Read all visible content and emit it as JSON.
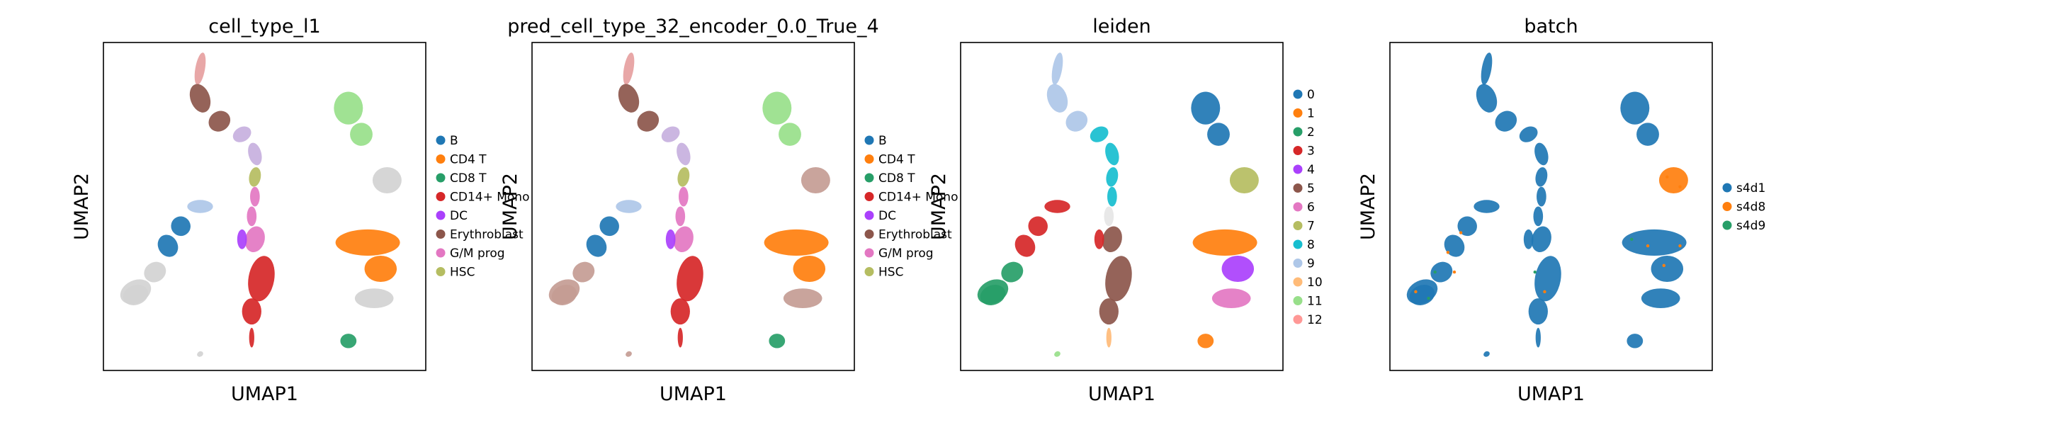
{
  "chart_data": [
    {
      "type": "scatter",
      "title": "cell_type_l1",
      "xlabel": "UMAP1",
      "ylabel": "UMAP2",
      "legend_position": "right",
      "legend": [
        {
          "label": "B",
          "color": "#1f77b4"
        },
        {
          "label": "CD4 T",
          "color": "#ff7f0e"
        },
        {
          "label": "CD8 T",
          "color": "#279e68"
        },
        {
          "label": "CD14+ Mono",
          "color": "#d62728"
        },
        {
          "label": "DC",
          "color": "#aa40fc"
        },
        {
          "label": "Erythroblast",
          "color": "#8c564b"
        },
        {
          "label": "G/M prog",
          "color": "#e377c2"
        },
        {
          "label": "HSC",
          "color": "#b5bd61"
        }
      ]
    },
    {
      "type": "scatter",
      "title": "pred_cell_type_32_encoder_0.0_True_4",
      "xlabel": "UMAP1",
      "ylabel": "UMAP2",
      "legend_position": "right",
      "legend": [
        {
          "label": "B",
          "color": "#1f77b4"
        },
        {
          "label": "CD4 T",
          "color": "#ff7f0e"
        },
        {
          "label": "CD8 T",
          "color": "#279e68"
        },
        {
          "label": "CD14+ Mono",
          "color": "#d62728"
        },
        {
          "label": "DC",
          "color": "#aa40fc"
        },
        {
          "label": "Erythroblast",
          "color": "#8c564b"
        },
        {
          "label": "G/M prog",
          "color": "#e377c2"
        },
        {
          "label": "HSC",
          "color": "#b5bd61"
        }
      ]
    },
    {
      "type": "scatter",
      "title": "leiden",
      "xlabel": "UMAP1",
      "ylabel": "UMAP2",
      "legend_position": "right",
      "legend": [
        {
          "label": "0",
          "color": "#1f77b4"
        },
        {
          "label": "1",
          "color": "#ff7f0e"
        },
        {
          "label": "2",
          "color": "#279e68"
        },
        {
          "label": "3",
          "color": "#d62728"
        },
        {
          "label": "4",
          "color": "#aa40fc"
        },
        {
          "label": "5",
          "color": "#8c564b"
        },
        {
          "label": "6",
          "color": "#e377c2"
        },
        {
          "label": "7",
          "color": "#b5bd61"
        },
        {
          "label": "8",
          "color": "#17becf"
        },
        {
          "label": "9",
          "color": "#aec7e8"
        },
        {
          "label": "10",
          "color": "#ffbb78"
        },
        {
          "label": "11",
          "color": "#98df8a"
        },
        {
          "label": "12",
          "color": "#ff9896"
        }
      ]
    },
    {
      "type": "scatter",
      "title": "batch",
      "xlabel": "UMAP1",
      "ylabel": "UMAP2",
      "legend_position": "right",
      "legend": [
        {
          "label": "s4d1",
          "color": "#1f77b4"
        },
        {
          "label": "s4d8",
          "color": "#ff7f0e"
        },
        {
          "label": "s4d9",
          "color": "#279e68"
        }
      ]
    }
  ],
  "colors": {
    "unlabeled": "#d3d3d3",
    "pred_mislabel": "#c49c94"
  }
}
